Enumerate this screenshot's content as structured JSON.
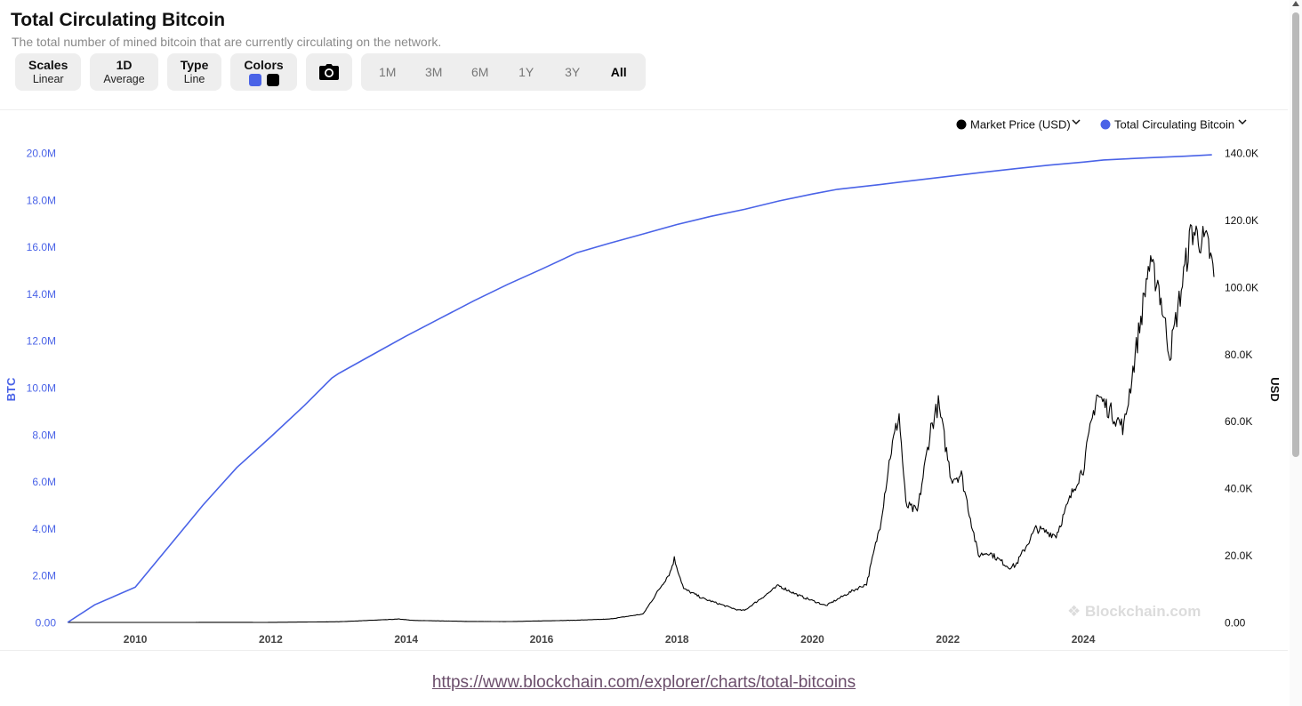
{
  "header": {
    "title": "Total Circulating Bitcoin",
    "subtitle": "The total number of mined bitcoin that are currently circulating on the network."
  },
  "toolbar": {
    "scales_label": "Scales",
    "scales_value": "Linear",
    "avg_label": "1D",
    "avg_value": "Average",
    "type_label": "Type",
    "type_value": "Line",
    "colors_label": "Colors",
    "color_1": "#4a63e7",
    "color_2": "#000000",
    "camera_icon": "camera-icon",
    "ranges": [
      "1M",
      "3M",
      "6M",
      "1Y",
      "3Y",
      "All"
    ],
    "active_range": "All"
  },
  "watermark": "Blockchain.com",
  "source_link": "https://www.blockchain.com/explorer/charts/total-bitcoins",
  "chart_data": {
    "type": "line",
    "x_ticks": [
      "2010",
      "2012",
      "2014",
      "2016",
      "2018",
      "2020",
      "2022",
      "2024"
    ],
    "y_left": {
      "label": "BTC",
      "ticks": [
        "0.00",
        "2.0M",
        "4.0M",
        "6.0M",
        "8.0M",
        "10.0M",
        "12.0M",
        "14.0M",
        "16.0M",
        "18.0M",
        "20.0M"
      ],
      "range": [
        0,
        20000000
      ]
    },
    "y_right": {
      "label": "USD",
      "ticks": [
        "0.00",
        "20.0K",
        "40.0K",
        "60.0K",
        "80.0K",
        "100.0K",
        "120.0K",
        "140.0K"
      ],
      "range": [
        0,
        140000
      ]
    },
    "legend": {
      "position": "top-right"
    },
    "grid": false,
    "series": [
      {
        "name": "Market Price (USD)",
        "color": "#000000",
        "axis": "right",
        "x": [
          2009.0,
          2010.5,
          2011.45,
          2011.9,
          2013.0,
          2013.9,
          2014.1,
          2014.9,
          2015.5,
          2016.5,
          2017.0,
          2017.5,
          2017.9,
          2017.96,
          2018.1,
          2018.4,
          2018.9,
          2019.0,
          2019.5,
          2019.8,
          2020.2,
          2020.6,
          2020.8,
          2021.0,
          2021.15,
          2021.28,
          2021.38,
          2021.55,
          2021.75,
          2021.86,
          2022.05,
          2022.2,
          2022.45,
          2022.6,
          2022.9,
          2023.0,
          2023.3,
          2023.6,
          2023.9,
          2024.0,
          2024.2,
          2024.6,
          2024.9,
          2024.96,
          2025.1,
          2025.28,
          2025.6,
          2025.85,
          2025.93
        ],
        "y": [
          0,
          0.1,
          30,
          3,
          200,
          1000,
          600,
          300,
          250,
          650,
          1000,
          2500,
          15000,
          19000,
          10000,
          7000,
          3700,
          3600,
          11000,
          8000,
          5000,
          9500,
          11500,
          29000,
          50000,
          62000,
          35000,
          33000,
          58000,
          65000,
          43000,
          44000,
          20000,
          21000,
          16500,
          17000,
          28000,
          26000,
          42000,
          46000,
          68000,
          58000,
          97000,
          106000,
          102000,
          80000,
          117000,
          112000,
          103000
        ]
      },
      {
        "name": "Total Circulating Bitcoin",
        "color": "#4a63e7",
        "axis": "left",
        "x": [
          2009.0,
          2009.4,
          2010.0,
          2010.5,
          2011.0,
          2011.5,
          2012.0,
          2012.5,
          2012.9,
          2013.0,
          2013.5,
          2014.0,
          2014.5,
          2015.0,
          2015.5,
          2016.0,
          2016.52,
          2017.0,
          2017.5,
          2018.0,
          2018.5,
          2019.0,
          2019.5,
          2020.0,
          2020.37,
          2021.0,
          2021.5,
          2022.0,
          2022.5,
          2023.0,
          2023.5,
          2024.0,
          2024.3,
          2025.0,
          2025.5,
          2025.9
        ],
        "y": [
          0,
          750000,
          1500000,
          3250000,
          5000000,
          6600000,
          7900000,
          9250000,
          10400000,
          10600000,
          11400000,
          12200000,
          12950000,
          13700000,
          14400000,
          15050000,
          15750000,
          16150000,
          16550000,
          16950000,
          17300000,
          17600000,
          17950000,
          18250000,
          18450000,
          18650000,
          18830000,
          19000000,
          19170000,
          19330000,
          19480000,
          19610000,
          19700000,
          19800000,
          19860000,
          19920000
        ]
      }
    ]
  }
}
